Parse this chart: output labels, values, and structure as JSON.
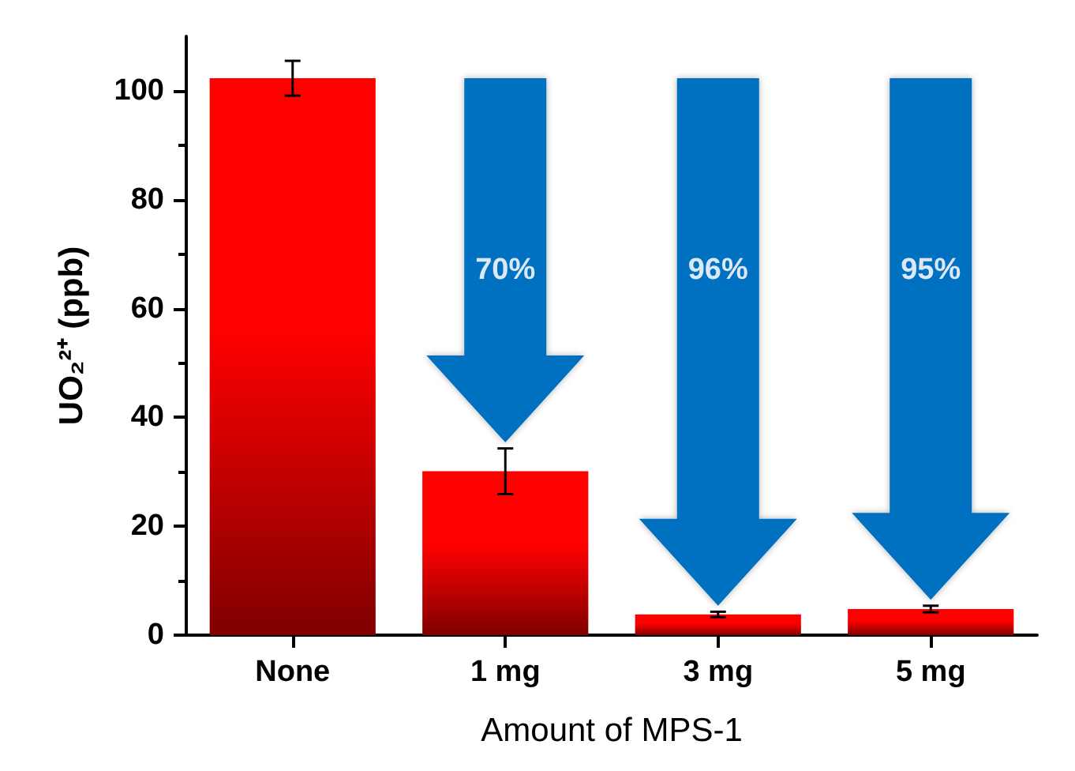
{
  "chart_data": {
    "type": "bar",
    "categories": [
      "None",
      "1 mg",
      "3 mg",
      "5 mg"
    ],
    "values": [
      102.3,
      30.1,
      3.8,
      4.8
    ],
    "errors": [
      3.2,
      4.2,
      0.5,
      0.6
    ],
    "color": "#ff0000",
    "xlabel": "Amount of MPS-1",
    "ylabel": "UO₂²⁺ (ppb)",
    "ylim": [
      0,
      110
    ],
    "yticks": [
      0,
      20,
      40,
      60,
      80,
      100
    ],
    "grid": false,
    "annotations": [
      "70%",
      "96%",
      "95%"
    ]
  }
}
